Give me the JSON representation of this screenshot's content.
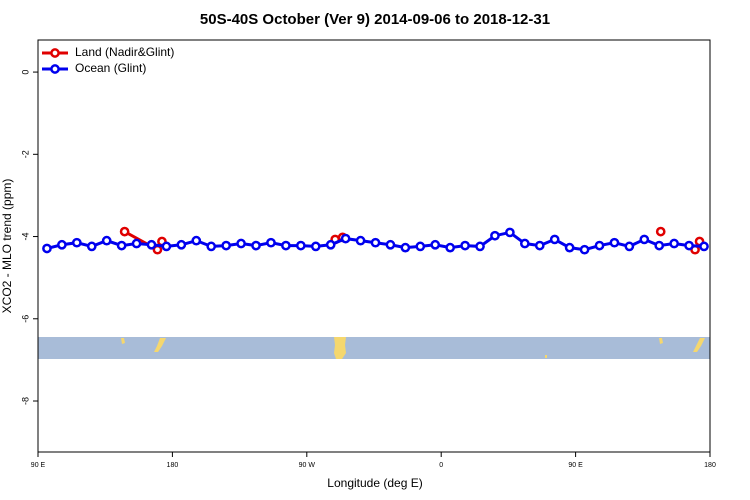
{
  "chart_data": {
    "type": "line",
    "title": "50S-40S October (Ver 9)   2014-09-06 to 2018-12-31",
    "xlabel": "Longitude (deg E)",
    "ylabel": "XCO2 - MLO trend (ppm)",
    "xlim": [
      90,
      540
    ],
    "xticks": [
      {
        "value": 90,
        "label": "90 E"
      },
      {
        "value": 180,
        "label": "180"
      },
      {
        "value": 270,
        "label": "90 W"
      },
      {
        "value": 360,
        "label": "0"
      },
      {
        "value": 450,
        "label": "90 E"
      },
      {
        "value": 540,
        "label": "180"
      }
    ],
    "ylim": [
      -9.24,
      0.78
    ],
    "yticks": [
      0,
      -2,
      -4,
      -6,
      -8
    ],
    "legend": "top-left",
    "series": [
      {
        "name": "Land (Nadir&Glint)",
        "color": "#e00000",
        "x": [
          148,
          170,
          null,
          173,
          null,
          289,
          294,
          null,
          507,
          null,
          530,
          533
        ],
        "values": [
          -3.88,
          -4.32,
          null,
          -4.12,
          null,
          -4.07,
          -4.02,
          null,
          -3.88,
          null,
          -4.32,
          -4.12
        ]
      },
      {
        "name": "Ocean (Glint)",
        "color": "#0000ee",
        "x": [
          96,
          106,
          116,
          126,
          136,
          146,
          156,
          166,
          176,
          186,
          196,
          206,
          216,
          226,
          236,
          246,
          256,
          266,
          276,
          286,
          296,
          306,
          316,
          326,
          336,
          346,
          356,
          366,
          376,
          386,
          396,
          406,
          416,
          426,
          436,
          446,
          456,
          466,
          476,
          486,
          496,
          506,
          516,
          526,
          536
        ],
        "values": [
          -4.29,
          -4.2,
          -4.15,
          -4.24,
          -4.1,
          -4.22,
          -4.17,
          -4.2,
          -4.24,
          -4.2,
          -4.1,
          -4.24,
          -4.22,
          -4.17,
          -4.22,
          -4.15,
          -4.22,
          -4.22,
          -4.24,
          -4.2,
          -4.05,
          -4.1,
          -4.15,
          -4.2,
          -4.27,
          -4.24,
          -4.2,
          -4.27,
          -4.22,
          -4.24,
          -3.98,
          -3.9,
          -4.17,
          -4.22,
          -4.07,
          -4.27,
          -4.32,
          -4.22,
          -4.15,
          -4.24,
          -4.07,
          -4.22,
          -4.17,
          -4.22,
          -4.24
        ]
      }
    ]
  }
}
